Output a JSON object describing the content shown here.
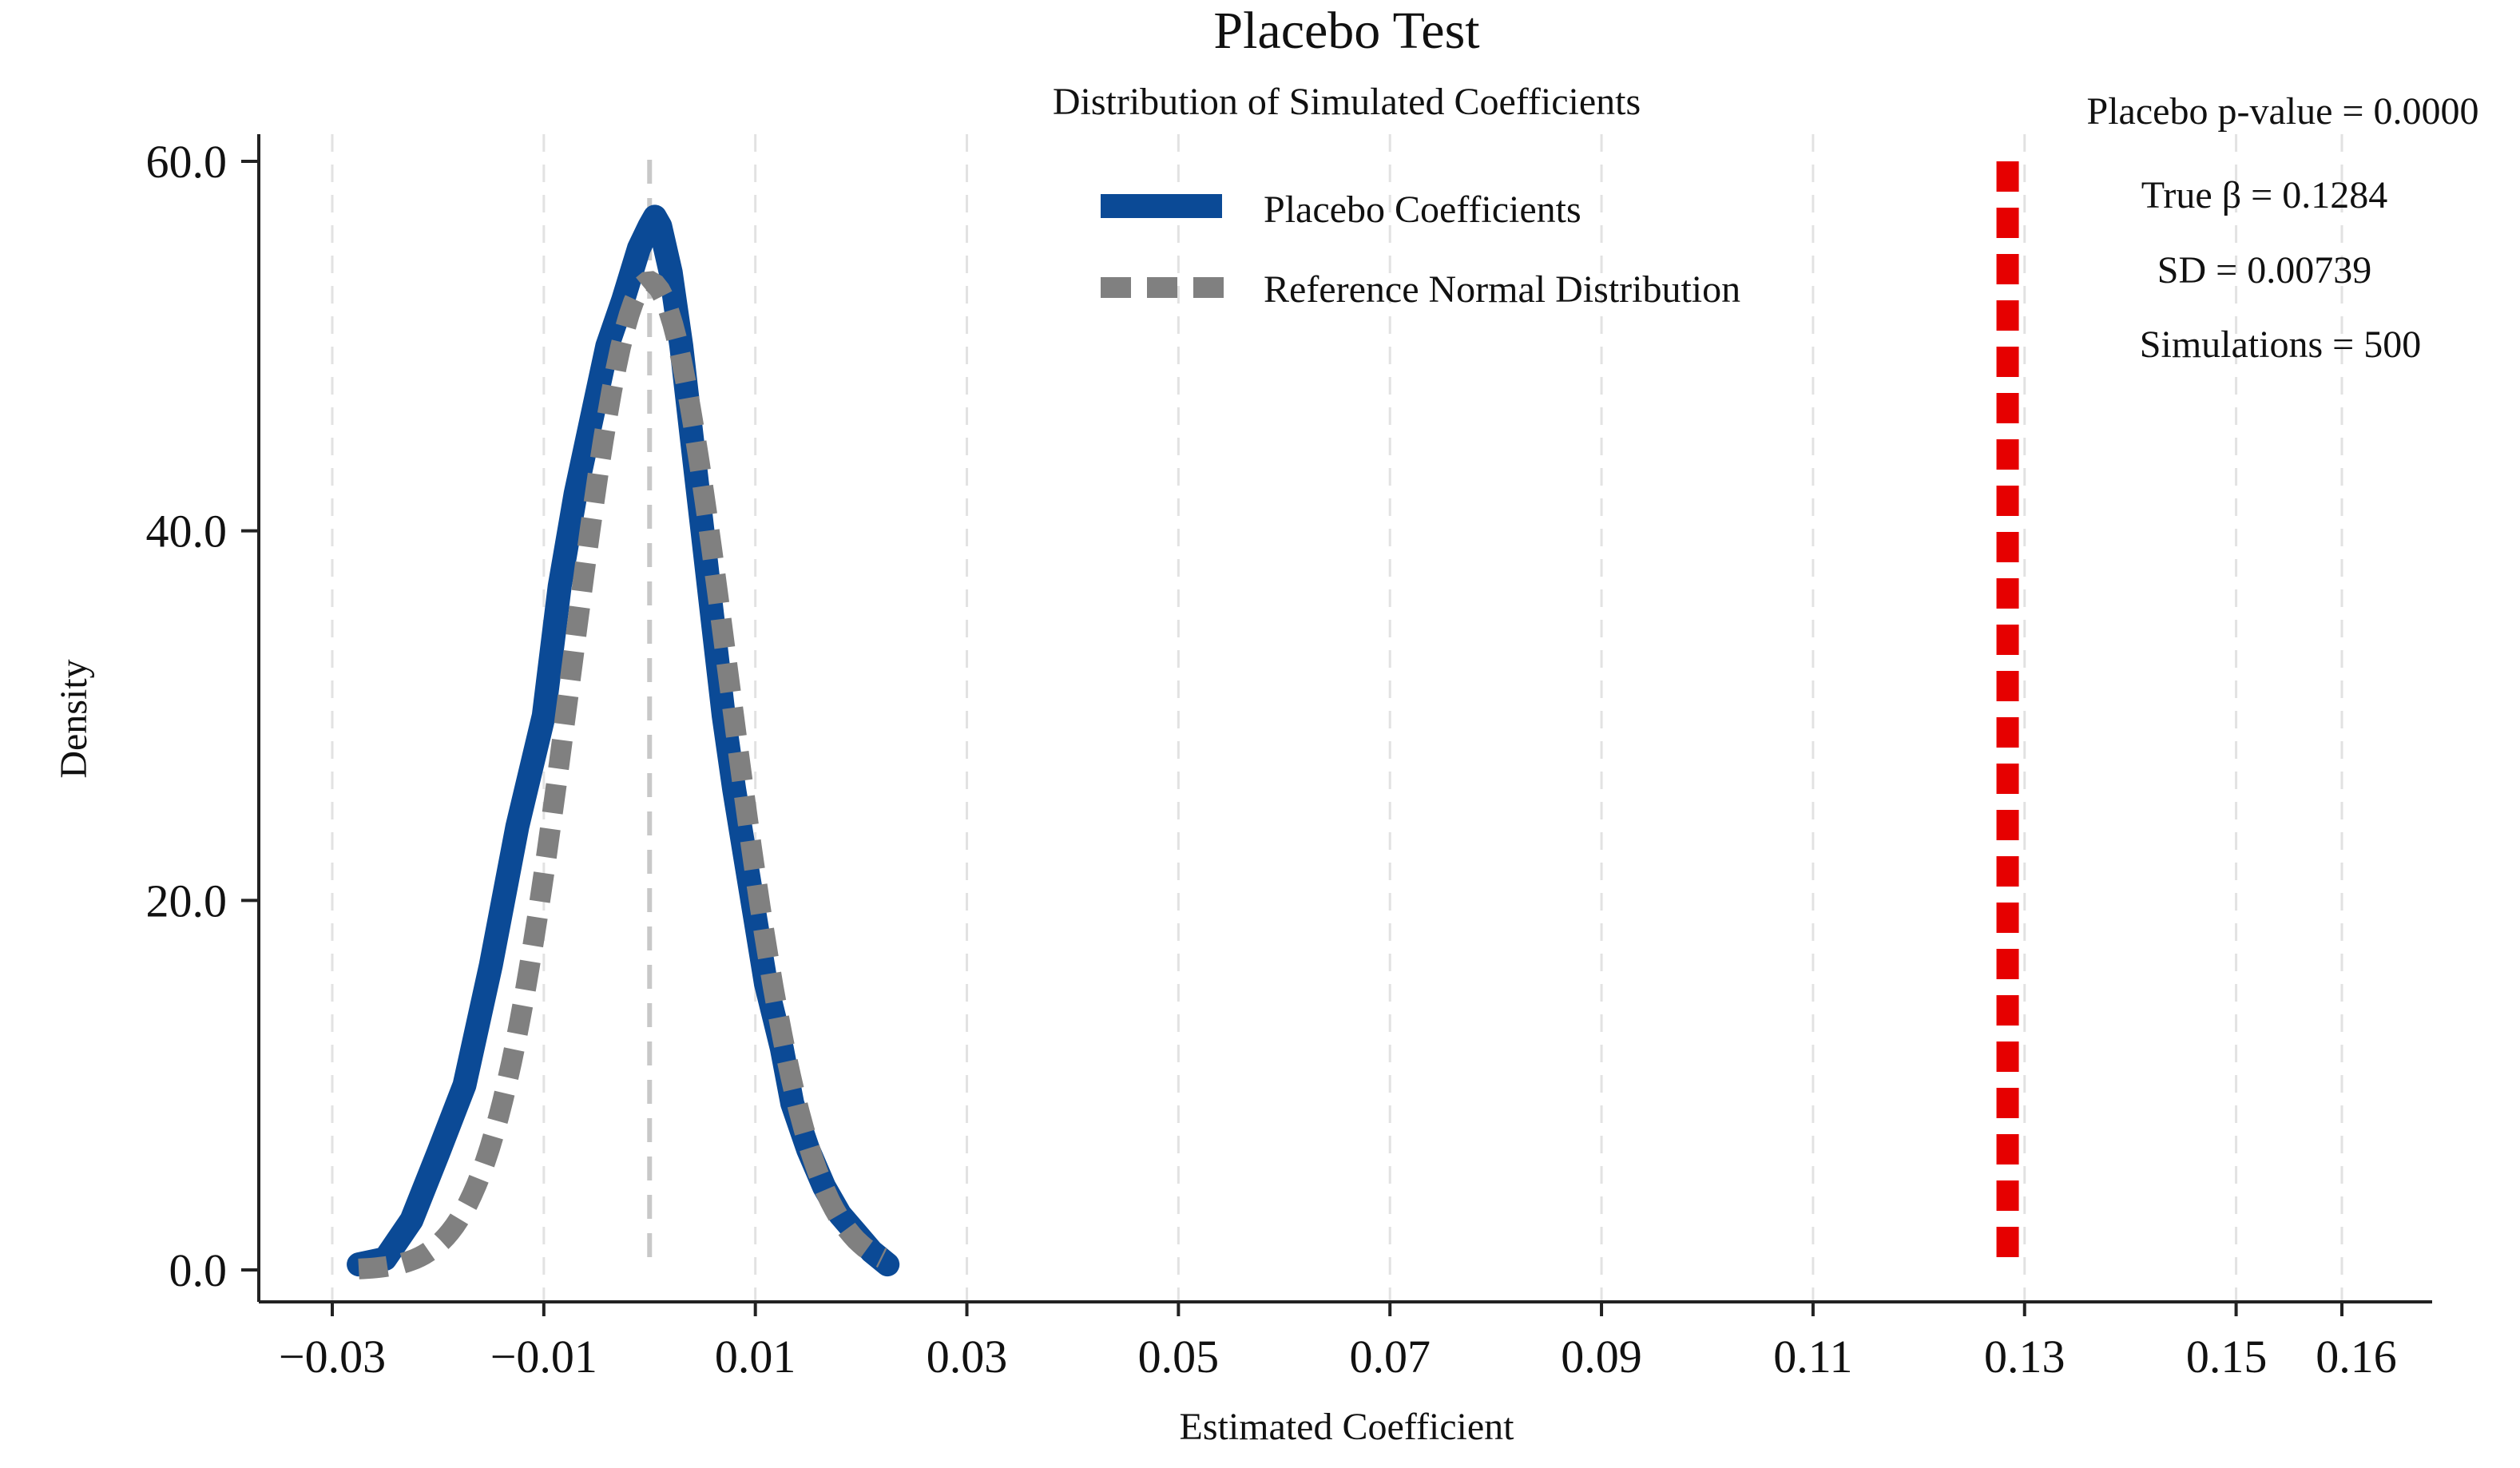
{
  "chart_data": {
    "type": "line",
    "title": "Placebo Test",
    "subtitle": "Distribution of Simulated Coefficients",
    "xlabel": "Estimated Coefficient",
    "ylabel": "Density",
    "xlim": [
      -0.033,
      0.168
    ],
    "ylim": [
      -1.5,
      60.5
    ],
    "x_ticks": [
      -0.03,
      -0.01,
      0.01,
      0.03,
      0.05,
      0.07,
      0.09,
      0.11,
      0.13,
      0.15,
      0.16
    ],
    "x_tick_labels": [
      "−0.03",
      "−0.01",
      "0.01",
      "0.03",
      "0.05",
      "0.07",
      "0.09",
      "0.11",
      "0.13",
      "0.15",
      "0.16"
    ],
    "y_ticks": [
      0,
      20,
      40,
      60
    ],
    "y_tick_labels": [
      "0.0",
      "20.0",
      "40.0",
      "60.0"
    ],
    "grid": "vertical dashed at x ticks",
    "legend_position": "top-center",
    "series": [
      {
        "name": "Placebo Coefficients",
        "style": "solid",
        "color": "#0b4a96",
        "x": [
          -0.0275,
          -0.025,
          -0.0225,
          -0.02,
          -0.0175,
          -0.015,
          -0.0125,
          -0.01,
          -0.0085,
          -0.007,
          -0.0055,
          -0.004,
          -0.0025,
          -0.001,
          0.0,
          0.0005,
          0.001,
          0.002,
          0.003,
          0.004,
          0.005,
          0.006,
          0.007,
          0.008,
          0.009,
          0.01,
          0.011,
          0.0125,
          0.0135,
          0.015,
          0.0165,
          0.018,
          0.0195,
          0.021,
          0.0225
        ],
        "values": [
          0.3,
          0.6,
          2.7,
          6.3,
          10.0,
          16.5,
          24.0,
          30.0,
          37.0,
          42.0,
          46.0,
          50.0,
          52.5,
          55.3,
          56.5,
          57.0,
          56.5,
          54.0,
          50.0,
          45.0,
          40.0,
          35.0,
          30.0,
          26.0,
          22.5,
          19.0,
          15.5,
          12.0,
          9.0,
          6.5,
          4.5,
          3.0,
          2.0,
          1.0,
          0.3
        ]
      },
      {
        "name": "Reference Normal Distribution",
        "style": "dashed",
        "color": "#808080",
        "mean": 0.0,
        "sd": 0.00739,
        "x_range": [
          -0.0275,
          0.022
        ]
      }
    ],
    "vertical_lines": [
      {
        "x": 0.0,
        "style": "dashed",
        "color": "#c8c8c8",
        "label": ""
      },
      {
        "x": 0.1284,
        "style": "dashed",
        "color": "#e60000",
        "label": "True β"
      }
    ],
    "annotations": [
      "Placebo p-value = 0.0000",
      "True β = 0.1284",
      "SD = 0.00739",
      "Simulations = 500"
    ]
  }
}
